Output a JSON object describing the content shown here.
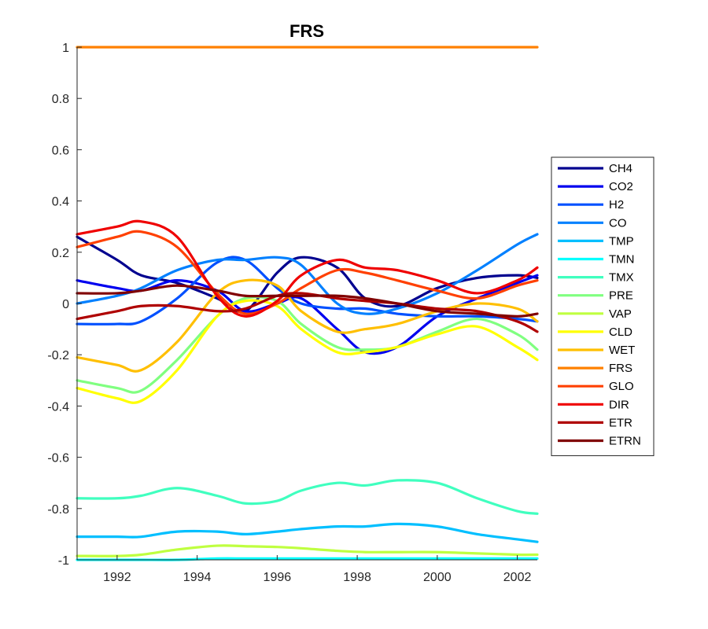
{
  "chart_data": {
    "type": "line",
    "title": "FRS",
    "xlabel": "",
    "ylabel": "",
    "xlim": [
      1991.0,
      2002.5
    ],
    "ylim": [
      -1,
      1
    ],
    "xticks": [
      1992,
      1994,
      1996,
      1998,
      2000,
      2002
    ],
    "xtick_labels": [
      "1992",
      "1994",
      "1996",
      "1998",
      "2000",
      "2002"
    ],
    "yticks": [
      -1,
      -0.8,
      -0.6,
      -0.4,
      -0.2,
      0,
      0.2,
      0.4,
      0.6,
      0.8,
      1
    ],
    "ytick_labels": [
      "-1",
      "-0.8",
      "-0.6",
      "-0.4",
      "-0.2",
      "0",
      "0.2",
      "0.4",
      "0.6",
      "0.8",
      "1"
    ],
    "grid": false,
    "legend_position": "outside-right",
    "x": [
      1991.0,
      1992.0,
      1992.6,
      1993.5,
      1994.5,
      1995.2,
      1996.0,
      1996.6,
      1997.5,
      1998.2,
      1999.0,
      2000.0,
      2001.0,
      2002.0,
      2002.5
    ],
    "series": [
      {
        "name": "CH4",
        "color": "#00008f",
        "values": [
          0.26,
          0.17,
          0.11,
          0.08,
          0.02,
          -0.03,
          0.12,
          0.18,
          0.14,
          0.02,
          -0.01,
          0.06,
          0.1,
          0.11,
          0.1
        ]
      },
      {
        "name": "CO2",
        "color": "#0000ef",
        "values": [
          0.09,
          0.06,
          0.05,
          0.09,
          0.05,
          -0.03,
          0.0,
          0.02,
          -0.1,
          -0.19,
          -0.17,
          -0.05,
          0.02,
          0.08,
          0.11
        ]
      },
      {
        "name": "H2",
        "color": "#0050ff",
        "values": [
          -0.08,
          -0.08,
          -0.07,
          0.02,
          0.16,
          0.17,
          0.06,
          0.0,
          -0.02,
          -0.02,
          -0.04,
          -0.05,
          -0.05,
          -0.06,
          -0.07
        ]
      },
      {
        "name": "CO",
        "color": "#0080ff",
        "values": [
          0.0,
          0.03,
          0.06,
          0.13,
          0.17,
          0.17,
          0.18,
          0.15,
          0.0,
          -0.04,
          -0.02,
          0.04,
          0.13,
          0.23,
          0.27
        ]
      },
      {
        "name": "TMP",
        "color": "#00bfff",
        "values": [
          -0.91,
          -0.91,
          -0.91,
          -0.89,
          -0.89,
          -0.9,
          -0.89,
          -0.88,
          -0.87,
          -0.87,
          -0.86,
          -0.87,
          -0.9,
          -0.92,
          -0.93
        ]
      },
      {
        "name": "TMN",
        "color": "#00ffff",
        "values": [
          -1.0,
          -1.0,
          -1.0,
          -1.0,
          -0.995,
          -0.995,
          -0.995,
          -0.995,
          -0.995,
          -0.995,
          -0.995,
          -0.995,
          -0.995,
          -0.995,
          -0.995
        ]
      },
      {
        "name": "TMX",
        "color": "#40ffbf",
        "values": [
          -0.76,
          -0.76,
          -0.75,
          -0.72,
          -0.75,
          -0.78,
          -0.77,
          -0.73,
          -0.7,
          -0.71,
          -0.69,
          -0.7,
          -0.76,
          -0.81,
          -0.82
        ]
      },
      {
        "name": "PRE",
        "color": "#80ff80",
        "values": [
          -0.3,
          -0.33,
          -0.34,
          -0.22,
          -0.05,
          0.02,
          0.01,
          -0.08,
          -0.17,
          -0.18,
          -0.17,
          -0.11,
          -0.06,
          -0.12,
          -0.18
        ]
      },
      {
        "name": "VAP",
        "color": "#bfff40",
        "values": [
          -0.985,
          -0.985,
          -0.98,
          -0.96,
          -0.945,
          -0.947,
          -0.95,
          -0.955,
          -0.965,
          -0.97,
          -0.97,
          -0.97,
          -0.975,
          -0.98,
          -0.98
        ]
      },
      {
        "name": "CLD",
        "color": "#ffff00",
        "values": [
          -0.33,
          -0.37,
          -0.38,
          -0.26,
          -0.05,
          0.01,
          -0.01,
          -0.1,
          -0.19,
          -0.19,
          -0.17,
          -0.12,
          -0.09,
          -0.17,
          -0.22
        ]
      },
      {
        "name": "WET",
        "color": "#ffbf00",
        "values": [
          -0.21,
          -0.24,
          -0.26,
          -0.15,
          0.04,
          0.09,
          0.07,
          -0.03,
          -0.11,
          -0.1,
          -0.08,
          -0.03,
          0.0,
          -0.02,
          -0.07
        ]
      },
      {
        "name": "FRS",
        "color": "#ff8000",
        "values": [
          1,
          1,
          1,
          1,
          1,
          1,
          1,
          1,
          1,
          1,
          1,
          1,
          1,
          1,
          1
        ]
      },
      {
        "name": "GLO",
        "color": "#ff4000",
        "values": [
          0.22,
          0.26,
          0.28,
          0.22,
          0.04,
          -0.04,
          0.0,
          0.06,
          0.13,
          0.12,
          0.09,
          0.05,
          0.02,
          0.07,
          0.09
        ]
      },
      {
        "name": "DIR",
        "color": "#ef0000",
        "values": [
          0.27,
          0.3,
          0.32,
          0.26,
          0.03,
          -0.05,
          0.01,
          0.11,
          0.17,
          0.14,
          0.13,
          0.09,
          0.04,
          0.09,
          0.14
        ]
      },
      {
        "name": "ETR",
        "color": "#af0000",
        "values": [
          -0.06,
          -0.03,
          -0.01,
          -0.01,
          -0.03,
          -0.02,
          0.03,
          0.04,
          0.02,
          0.01,
          0.0,
          -0.02,
          -0.03,
          -0.07,
          -0.11
        ]
      },
      {
        "name": "ETRN",
        "color": "#800000",
        "values": [
          0.04,
          0.04,
          0.05,
          0.07,
          0.05,
          0.03,
          0.03,
          0.03,
          0.03,
          0.02,
          0.0,
          -0.03,
          -0.04,
          -0.05,
          -0.04
        ]
      }
    ]
  }
}
